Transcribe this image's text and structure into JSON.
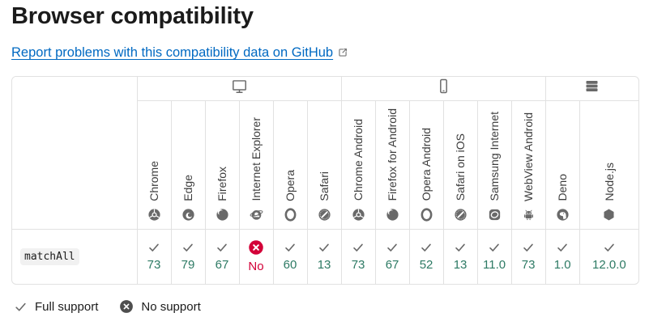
{
  "page": {
    "title": "Browser compatibility",
    "report_link": {
      "text": "Report problems with this compatibility data on GitHub",
      "icon": "external-link-icon"
    }
  },
  "compat_table": {
    "platform_groups": [
      {
        "name": "desktop",
        "icon": "desktop-icon",
        "browser_count": 6
      },
      {
        "name": "mobile",
        "icon": "mobile-icon",
        "browser_count": 6
      },
      {
        "name": "server",
        "icon": "server-icon",
        "browser_count": 2
      }
    ],
    "browsers": [
      {
        "label": "Chrome",
        "icon": "chrome-icon"
      },
      {
        "label": "Edge",
        "icon": "edge-icon"
      },
      {
        "label": "Firefox",
        "icon": "firefox-icon"
      },
      {
        "label": "Internet Explorer",
        "icon": "internet-explorer-icon"
      },
      {
        "label": "Opera",
        "icon": "opera-icon"
      },
      {
        "label": "Safari",
        "icon": "safari-icon"
      },
      {
        "label": "Chrome Android",
        "icon": "chrome-icon"
      },
      {
        "label": "Firefox for Android",
        "icon": "firefox-icon"
      },
      {
        "label": "Opera Android",
        "icon": "opera-icon"
      },
      {
        "label": "Safari on iOS",
        "icon": "safari-icon"
      },
      {
        "label": "Samsung Internet",
        "icon": "samsung-internet-icon"
      },
      {
        "label": "WebView Android",
        "icon": "webview-android-icon"
      },
      {
        "label": "Deno",
        "icon": "deno-icon"
      },
      {
        "label": "Node.js",
        "icon": "nodejs-icon"
      }
    ],
    "rows": [
      {
        "feature": "matchAll",
        "support": [
          "73",
          "79",
          "67",
          "No",
          "60",
          "13",
          "73",
          "67",
          "52",
          "13",
          "11.0",
          "73",
          "1.0",
          "12.0.0"
        ]
      }
    ]
  },
  "legend": {
    "items": [
      {
        "label": "Full support",
        "icon": "check-icon"
      },
      {
        "label": "No support",
        "icon": "cross-icon"
      }
    ]
  },
  "colors": {
    "supported_text": "#2d7a64",
    "unsupported_text": "#d30038",
    "link": "#0069c2",
    "icon_gray": "#696969",
    "border": "#e1e1e1"
  }
}
